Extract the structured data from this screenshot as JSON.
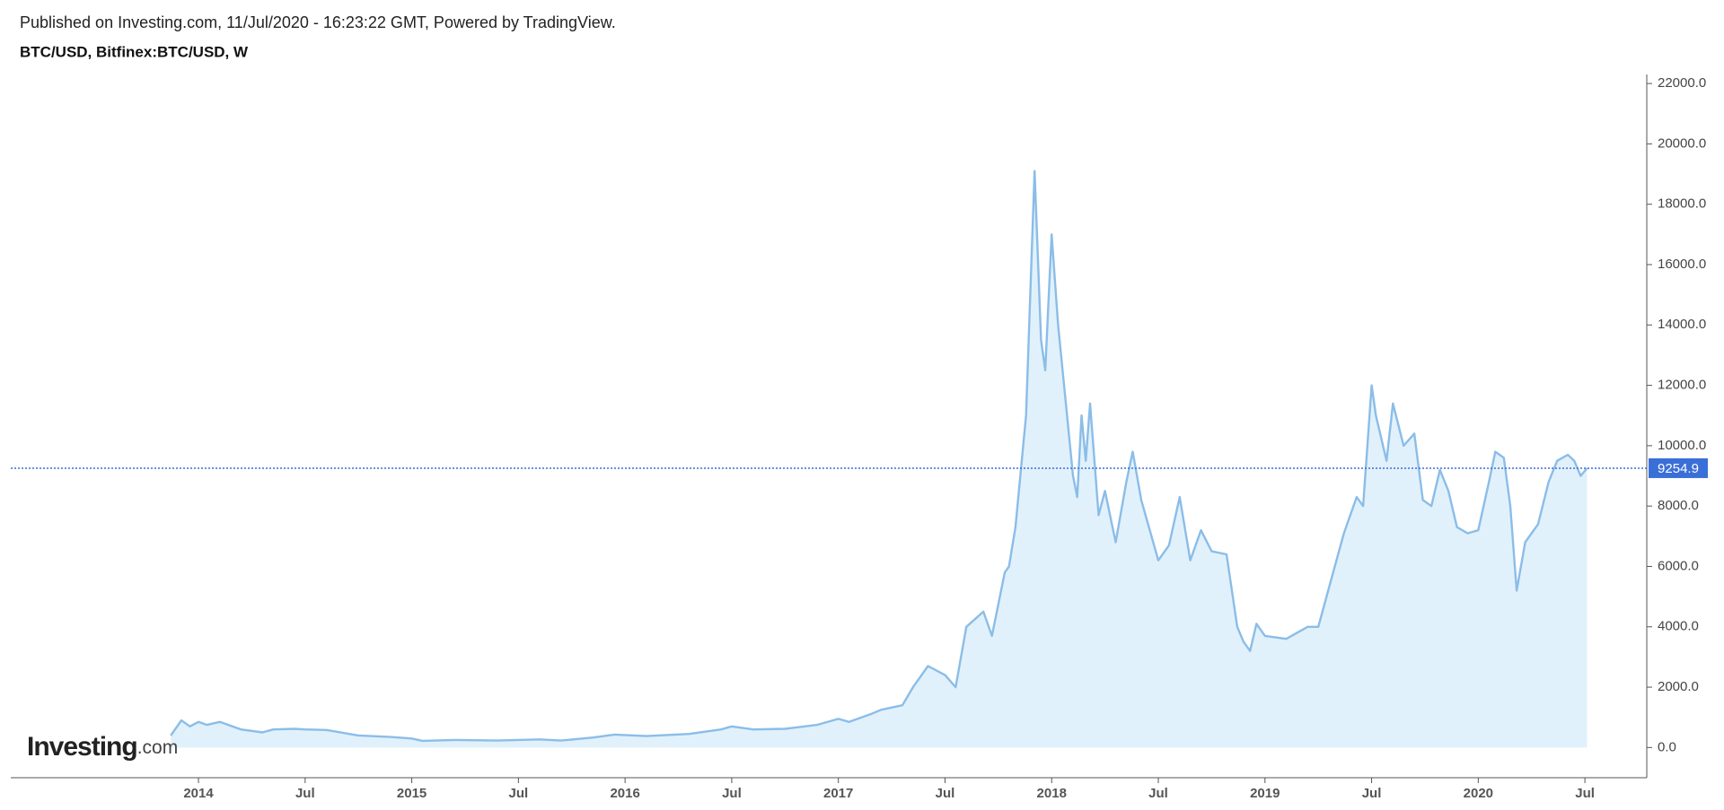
{
  "header": {
    "published": "Published on Investing.com, 11/Jul/2020 - 16:23:22 GMT, Powered by TradingView.",
    "symbol": "BTC/USD, Bitfinex:BTC/USD, W"
  },
  "logo": {
    "name": "Investing",
    "suffix": ".com"
  },
  "chart_data": {
    "type": "area",
    "color": "#8bbde8",
    "fill": "#e1f1fb",
    "x": [
      2013.87,
      2013.92,
      2013.96,
      2014.0,
      2014.04,
      2014.1,
      2014.2,
      2014.3,
      2014.35,
      2014.45,
      2014.5,
      2014.6,
      2014.75,
      2014.9,
      2015.0,
      2015.05,
      2015.2,
      2015.4,
      2015.6,
      2015.7,
      2015.85,
      2015.95,
      2016.1,
      2016.3,
      2016.45,
      2016.5,
      2016.6,
      2016.75,
      2016.9,
      2017.0,
      2017.05,
      2017.15,
      2017.2,
      2017.3,
      2017.35,
      2017.42,
      2017.5,
      2017.55,
      2017.6,
      2017.68,
      2017.72,
      2017.78,
      2017.8,
      2017.83,
      2017.88,
      2017.92,
      2017.95,
      2017.97,
      2018.0,
      2018.03,
      2018.1,
      2018.12,
      2018.14,
      2018.16,
      2018.18,
      2018.22,
      2018.25,
      2018.3,
      2018.35,
      2018.38,
      2018.42,
      2018.5,
      2018.55,
      2018.6,
      2018.65,
      2018.7,
      2018.75,
      2018.82,
      2018.87,
      2018.9,
      2018.93,
      2018.96,
      2019.0,
      2019.1,
      2019.2,
      2019.25,
      2019.3,
      2019.37,
      2019.43,
      2019.46,
      2019.5,
      2019.52,
      2019.57,
      2019.6,
      2019.65,
      2019.7,
      2019.74,
      2019.78,
      2019.82,
      2019.86,
      2019.9,
      2019.95,
      2020.0,
      2020.05,
      2020.08,
      2020.12,
      2020.15,
      2020.18,
      2020.22,
      2020.28,
      2020.33,
      2020.37,
      2020.42,
      2020.45,
      2020.48,
      2020.51
    ],
    "values": [
      400,
      900,
      700,
      850,
      750,
      850,
      600,
      500,
      600,
      620,
      600,
      580,
      400,
      350,
      300,
      220,
      250,
      230,
      270,
      230,
      330,
      430,
      380,
      450,
      600,
      700,
      600,
      620,
      750,
      950,
      850,
      1100,
      1250,
      1400,
      2000,
      2700,
      2400,
      2000,
      4000,
      4500,
      3700,
      5800,
      6000,
      7300,
      11000,
      19100,
      13500,
      12500,
      17000,
      14000,
      9000,
      8300,
      11000,
      9500,
      11400,
      7700,
      8500,
      6800,
      8800,
      9800,
      8200,
      6200,
      6700,
      8300,
      6200,
      7200,
      6500,
      6400,
      4000,
      3500,
      3200,
      4100,
      3700,
      3600,
      4000,
      4000,
      5300,
      7100,
      8300,
      8000,
      12000,
      11000,
      9500,
      11400,
      10000,
      10400,
      8200,
      8000,
      9200,
      8500,
      7300,
      7100,
      7200,
      8800,
      9800,
      9600,
      8000,
      5200,
      6800,
      7400,
      8800,
      9500,
      9700,
      9500,
      9000,
      9254.9
    ],
    "last_price": 9254.9,
    "last_color": "#3a6fd8",
    "xlim": [
      2013.12,
      2020.79
    ],
    "ylim": [
      -1000,
      22300
    ],
    "xticks": [
      {
        "value": 2014,
        "label": "2014"
      },
      {
        "value": 2014.5,
        "label": "Jul"
      },
      {
        "value": 2015,
        "label": "2015"
      },
      {
        "value": 2015.5,
        "label": "Jul"
      },
      {
        "value": 2016,
        "label": "2016"
      },
      {
        "value": 2016.5,
        "label": "Jul"
      },
      {
        "value": 2017,
        "label": "2017"
      },
      {
        "value": 2017.5,
        "label": "Jul"
      },
      {
        "value": 2018,
        "label": "2018"
      },
      {
        "value": 2018.5,
        "label": "Jul"
      },
      {
        "value": 2019,
        "label": "2019"
      },
      {
        "value": 2019.5,
        "label": "Jul"
      },
      {
        "value": 2020,
        "label": "2020"
      },
      {
        "value": 2020.5,
        "label": "Jul"
      }
    ],
    "yticks": [
      {
        "value": 0,
        "label": "0.0"
      },
      {
        "value": 2000,
        "label": "2000.0"
      },
      {
        "value": 4000,
        "label": "4000.0"
      },
      {
        "value": 6000,
        "label": "6000.0"
      },
      {
        "value": 8000,
        "label": "8000.0"
      },
      {
        "value": 10000,
        "label": "10000.0"
      },
      {
        "value": 12000,
        "label": "12000.0"
      },
      {
        "value": 14000,
        "label": "14000.0"
      },
      {
        "value": 16000,
        "label": "16000.0"
      },
      {
        "value": 18000,
        "label": "18000.0"
      },
      {
        "value": 20000,
        "label": "20000.0"
      },
      {
        "value": 22000,
        "label": "22000.0"
      }
    ]
  }
}
